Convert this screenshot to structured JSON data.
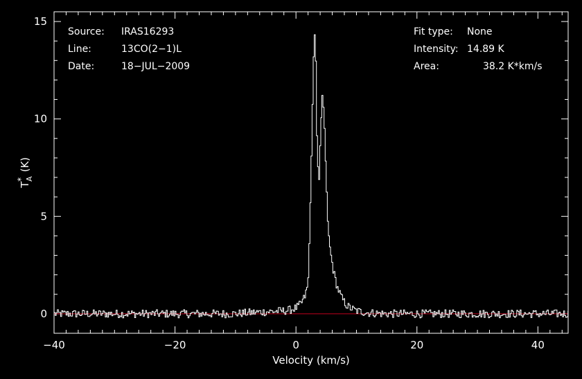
{
  "chart_data": {
    "type": "line",
    "xlabel": "Velocity (km/s)",
    "ylabel": "T",
    "ylabel_sub": "A",
    "ylabel_sup": "*",
    "ylabel_unit": "(K)",
    "xlim": [
      -40,
      45
    ],
    "ylim": [
      -1.0,
      15.5
    ],
    "x_ticks": [
      -40,
      -20,
      0,
      20,
      40
    ],
    "y_ticks": [
      0,
      5,
      10,
      15
    ],
    "x_tick_labels": [
      "−40",
      "−20",
      "0",
      "20",
      "40"
    ],
    "y_tick_labels": [
      "0",
      "5",
      "10",
      "15"
    ],
    "grid": false,
    "baseline": {
      "value": 0,
      "color": "#c0001e"
    },
    "series": [
      {
        "type": "step",
        "color": "#ffffff",
        "x": [
          -40,
          -30,
          -20,
          -15,
          -10,
          -8,
          -5,
          -2,
          -1,
          0,
          0.5,
          1,
          1.5,
          2,
          2.3,
          2.6,
          2.9,
          3.2,
          3.5,
          3.8,
          4.1,
          4.4,
          4.7,
          5.0,
          5.3,
          5.6,
          5.9,
          6.2,
          6.5,
          6.8,
          7.2,
          7.6,
          8.0,
          8.5,
          9.0,
          10,
          12,
          15,
          20,
          25,
          30,
          35,
          40,
          45
        ],
        "y": [
          0.0,
          0.0,
          0.0,
          0.0,
          0.0,
          0.05,
          0.1,
          0.15,
          0.2,
          0.3,
          0.4,
          0.6,
          0.9,
          1.5,
          4.5,
          8.5,
          13.0,
          14.89,
          8.5,
          6.6,
          9.5,
          11.4,
          9.8,
          7.0,
          4.5,
          3.5,
          2.8,
          2.2,
          1.8,
          1.4,
          1.1,
          0.8,
          0.6,
          0.4,
          0.3,
          0.15,
          0.05,
          0.0,
          0.0,
          0.0,
          0.0,
          0.0,
          0.0,
          0.0
        ]
      }
    ]
  },
  "info_left": [
    {
      "key": "Source:",
      "value": "IRAS16293"
    },
    {
      "key": "Line:",
      "value": "13CO(2−1)L"
    },
    {
      "key": "Date:",
      "value": "18−JUL−2009"
    }
  ],
  "info_right": [
    {
      "key": "Fit type:",
      "value": "None"
    },
    {
      "key": "Intensity:",
      "value": "14.89 K"
    },
    {
      "key": "Area:",
      "value": "38.2 K*km/s"
    }
  ]
}
